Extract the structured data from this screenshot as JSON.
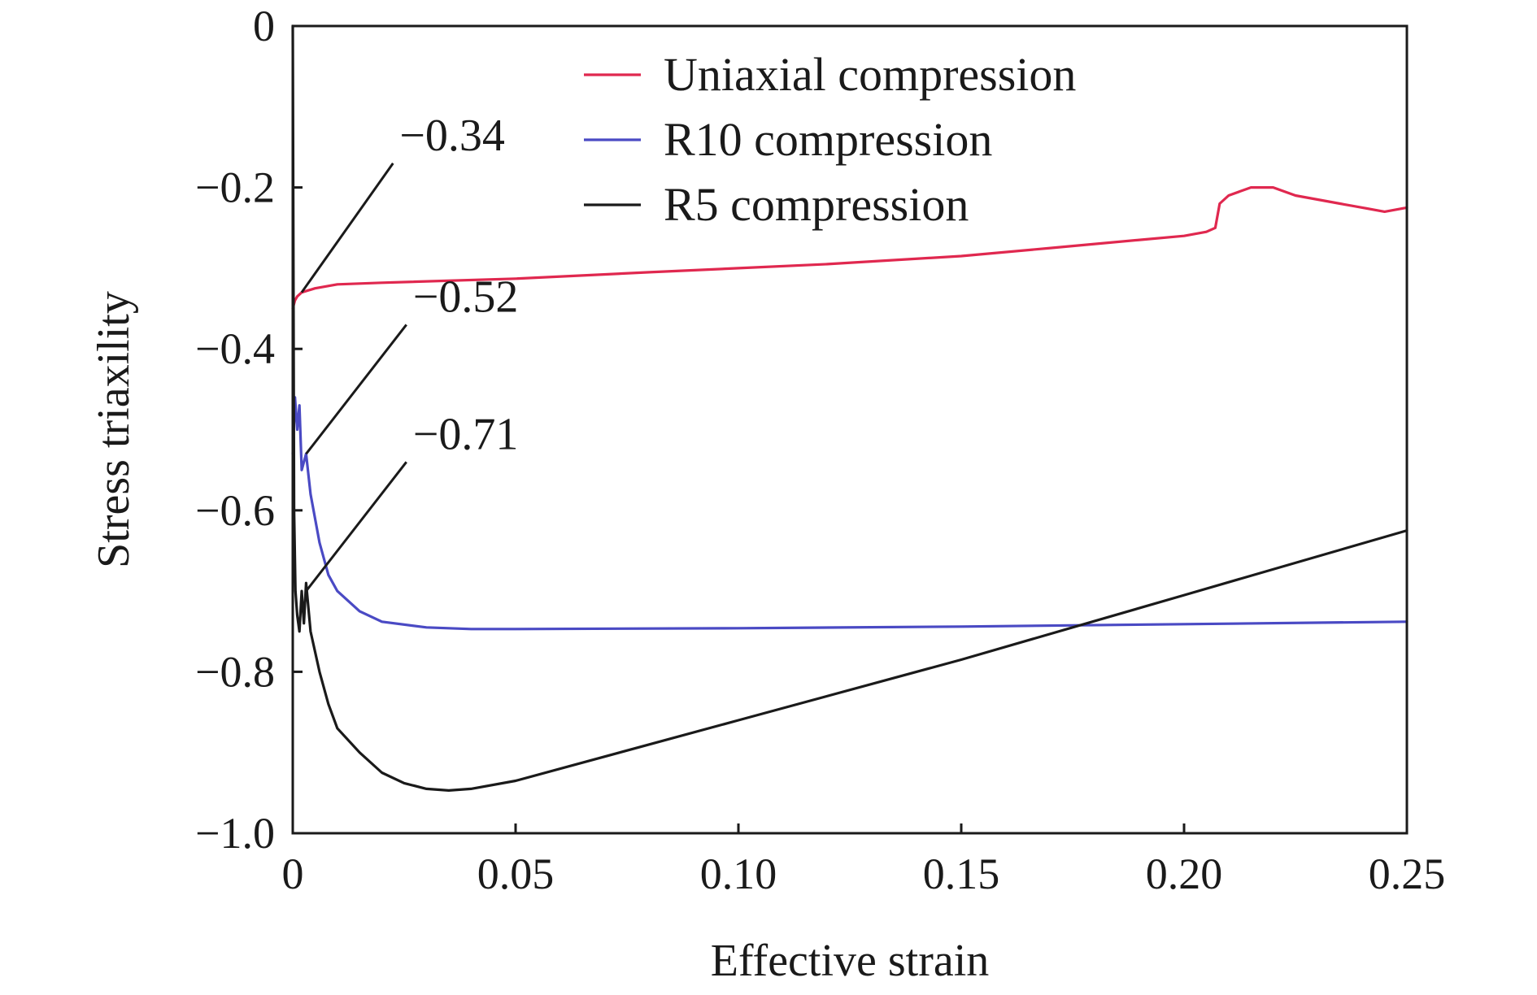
{
  "chart_data": {
    "type": "line",
    "title": "",
    "xlabel": "Effective strain",
    "ylabel": "Stress triaxility",
    "xlim": [
      0,
      0.25
    ],
    "ylim": [
      -1.0,
      0
    ],
    "xticks": [
      0,
      0.05,
      0.1,
      0.15,
      0.2,
      0.25
    ],
    "xtick_labels": [
      "0",
      "0.05",
      "0.10",
      "0.15",
      "0.20",
      "0.25"
    ],
    "yticks": [
      0,
      -0.2,
      -0.4,
      -0.6,
      -0.8,
      -1.0
    ],
    "ytick_labels": [
      "0",
      "−0.2",
      "−0.4",
      "−0.6",
      "−0.8",
      "−1.0"
    ],
    "grid": false,
    "legend_position": "top-right",
    "series": [
      {
        "name": "Uniaxial compression",
        "color": "#e0284f",
        "x": [
          0,
          0.0005,
          0.001,
          0.002,
          0.005,
          0.01,
          0.02,
          0.05,
          0.08,
          0.1,
          0.12,
          0.15,
          0.17,
          0.19,
          0.2,
          0.205,
          0.207,
          0.208,
          0.21,
          0.215,
          0.22,
          0.225,
          0.23,
          0.235,
          0.24,
          0.245,
          0.25
        ],
        "y": [
          -0.35,
          -0.34,
          -0.335,
          -0.33,
          -0.325,
          -0.32,
          -0.318,
          -0.313,
          -0.305,
          -0.3,
          -0.295,
          -0.285,
          -0.275,
          -0.265,
          -0.26,
          -0.255,
          -0.25,
          -0.22,
          -0.21,
          -0.2,
          -0.2,
          -0.21,
          -0.215,
          -0.22,
          -0.225,
          -0.23,
          -0.225
        ]
      },
      {
        "name": "R10 compression",
        "color": "#4a4ac4",
        "x": [
          0,
          0.0005,
          0.001,
          0.0015,
          0.002,
          0.003,
          0.004,
          0.006,
          0.008,
          0.01,
          0.015,
          0.02,
          0.03,
          0.04,
          0.05,
          0.1,
          0.15,
          0.2,
          0.25
        ],
        "y": [
          -0.53,
          -0.46,
          -0.5,
          -0.47,
          -0.55,
          -0.53,
          -0.58,
          -0.64,
          -0.68,
          -0.7,
          -0.725,
          -0.738,
          -0.745,
          -0.747,
          -0.747,
          -0.746,
          -0.744,
          -0.741,
          -0.738
        ]
      },
      {
        "name": "R5 compression",
        "color": "#1a1a1a",
        "x": [
          0,
          0.0003,
          0.0006,
          0.001,
          0.0015,
          0.002,
          0.0025,
          0.003,
          0.004,
          0.006,
          0.008,
          0.01,
          0.015,
          0.02,
          0.025,
          0.03,
          0.035,
          0.04,
          0.05,
          0.1,
          0.15,
          0.2,
          0.25
        ],
        "y": [
          0,
          -0.6,
          -0.7,
          -0.73,
          -0.75,
          -0.7,
          -0.74,
          -0.69,
          -0.75,
          -0.8,
          -0.84,
          -0.87,
          -0.9,
          -0.925,
          -0.938,
          -0.945,
          -0.947,
          -0.945,
          -0.935,
          -0.86,
          -0.785,
          -0.705,
          -0.625
        ]
      }
    ],
    "annotations": [
      {
        "text": "−0.34",
        "point": [
          0.002,
          -0.33
        ],
        "label_at": [
          0.0225,
          -0.16
        ]
      },
      {
        "text": "−0.52",
        "point": [
          0.003,
          -0.53
        ],
        "label_at": [
          0.0255,
          -0.36
        ]
      },
      {
        "text": "−0.71",
        "point": [
          0.003,
          -0.7
        ],
        "label_at": [
          0.0255,
          -0.53
        ]
      }
    ]
  }
}
